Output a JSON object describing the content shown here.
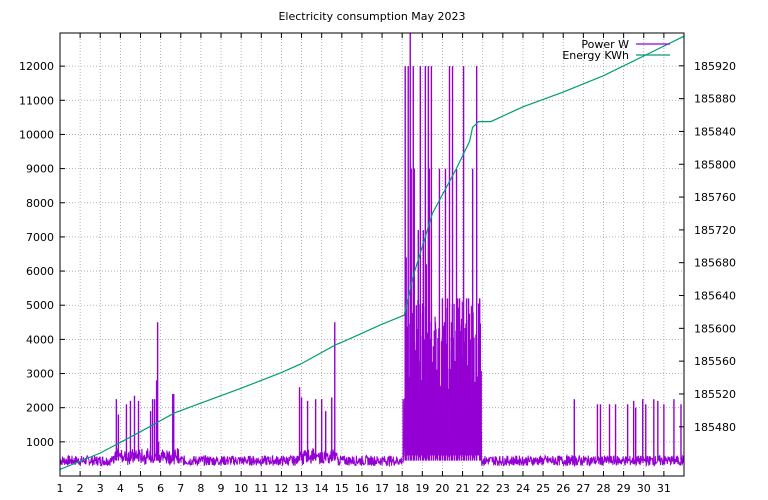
{
  "chart_data": {
    "type": "line",
    "title": "Electricity consumption May 2023",
    "x": {
      "ticks": [
        1,
        2,
        3,
        4,
        5,
        6,
        7,
        8,
        9,
        10,
        11,
        12,
        13,
        14,
        15,
        16,
        17,
        18,
        19,
        20,
        21,
        22,
        23,
        24,
        25,
        26,
        27,
        28,
        29,
        30,
        31
      ],
      "range": [
        1,
        32
      ]
    },
    "y_left": {
      "ticks": [
        1000,
        2000,
        3000,
        4000,
        5000,
        6000,
        7000,
        8000,
        9000,
        10000,
        11000,
        12000
      ],
      "range": [
        0,
        12970
      ]
    },
    "y_right": {
      "ticks": [
        185480,
        185520,
        185560,
        185600,
        185640,
        185680,
        185720,
        185760,
        185800,
        185840,
        185880,
        185920
      ],
      "range": [
        185420,
        185960
      ]
    },
    "grid": "dotted",
    "legend_position": "top-right",
    "series": [
      {
        "name": "Power W",
        "axis": "left",
        "color": "#9400d3",
        "baseline": 450,
        "spikes": [
          [
            3.8,
            2250
          ],
          [
            3.9,
            1800
          ],
          [
            4.1,
            600
          ],
          [
            4.3,
            2100
          ],
          [
            4.5,
            2200
          ],
          [
            4.7,
            2350
          ],
          [
            4.9,
            2200
          ],
          [
            5.5,
            1900
          ],
          [
            5.6,
            2250
          ],
          [
            5.7,
            2250
          ],
          [
            5.8,
            2800
          ],
          [
            5.85,
            4500
          ],
          [
            5.9,
            1000
          ],
          [
            6.6,
            2400
          ],
          [
            6.65,
            2400
          ],
          [
            12.9,
            2600
          ],
          [
            13.0,
            2300
          ],
          [
            13.3,
            2200
          ],
          [
            13.7,
            2250
          ],
          [
            14.0,
            2250
          ],
          [
            14.2,
            1900
          ],
          [
            14.5,
            2300
          ],
          [
            14.65,
            4500
          ],
          [
            18.05,
            2250
          ],
          [
            18.15,
            12000
          ],
          [
            18.2,
            6400
          ],
          [
            18.3,
            12000
          ],
          [
            18.4,
            12970
          ],
          [
            18.45,
            9000
          ],
          [
            18.55,
            12000
          ],
          [
            18.6,
            9000
          ],
          [
            18.7,
            5000
          ],
          [
            18.8,
            7200
          ],
          [
            18.9,
            12000
          ],
          [
            19.0,
            4100
          ],
          [
            19.05,
            7200
          ],
          [
            19.15,
            12000
          ],
          [
            19.2,
            6200
          ],
          [
            19.3,
            12000
          ],
          [
            19.35,
            9000
          ],
          [
            19.45,
            12000
          ],
          [
            19.55,
            3800
          ],
          [
            19.65,
            4500
          ],
          [
            19.75,
            3000
          ],
          [
            19.85,
            9000
          ],
          [
            19.9,
            2300
          ],
          [
            20.0,
            5200
          ],
          [
            20.1,
            4500
          ],
          [
            20.15,
            9000
          ],
          [
            20.25,
            5200
          ],
          [
            20.35,
            12000
          ],
          [
            20.45,
            4500
          ],
          [
            20.5,
            12000
          ],
          [
            20.6,
            2300
          ],
          [
            20.7,
            9000
          ],
          [
            20.75,
            5200
          ],
          [
            20.85,
            5200
          ],
          [
            20.95,
            4600
          ],
          [
            21.05,
            12000
          ],
          [
            21.1,
            2400
          ],
          [
            21.2,
            5200
          ],
          [
            21.3,
            5200
          ],
          [
            21.4,
            4000
          ],
          [
            21.5,
            9000
          ],
          [
            21.6,
            2100
          ],
          [
            21.7,
            12000
          ],
          [
            21.85,
            5200
          ],
          [
            21.9,
            2200
          ],
          [
            26.55,
            2250
          ],
          [
            27.7,
            2100
          ],
          [
            27.85,
            2100
          ],
          [
            28.3,
            2100
          ],
          [
            28.6,
            2100
          ],
          [
            29.2,
            2100
          ],
          [
            29.5,
            2200
          ],
          [
            29.6,
            2000
          ],
          [
            29.95,
            2250
          ],
          [
            30.1,
            2100
          ],
          [
            30.5,
            2250
          ],
          [
            30.7,
            2200
          ],
          [
            31.0,
            2100
          ],
          [
            31.5,
            2250
          ],
          [
            31.85,
            2100
          ]
        ]
      },
      {
        "name": "Energy KWh",
        "axis": "right",
        "color": "#009e73",
        "points": [
          [
            1,
            185428
          ],
          [
            3,
            185448
          ],
          [
            5,
            185474
          ],
          [
            6.7,
            185497
          ],
          [
            10,
            185527
          ],
          [
            12,
            185546
          ],
          [
            13,
            185557
          ],
          [
            14.7,
            185580
          ],
          [
            15,
            185583
          ],
          [
            17,
            185605
          ],
          [
            18.1,
            185616
          ],
          [
            18.5,
            185660
          ],
          [
            19.5,
            185740
          ],
          [
            20.7,
            185795
          ],
          [
            21.35,
            185828
          ],
          [
            21.5,
            185845
          ],
          [
            21.8,
            185852
          ],
          [
            22.4,
            185852
          ],
          [
            24,
            185870
          ],
          [
            26,
            185888
          ],
          [
            28,
            185908
          ],
          [
            30,
            185932
          ],
          [
            31.99,
            185956
          ]
        ]
      }
    ]
  }
}
